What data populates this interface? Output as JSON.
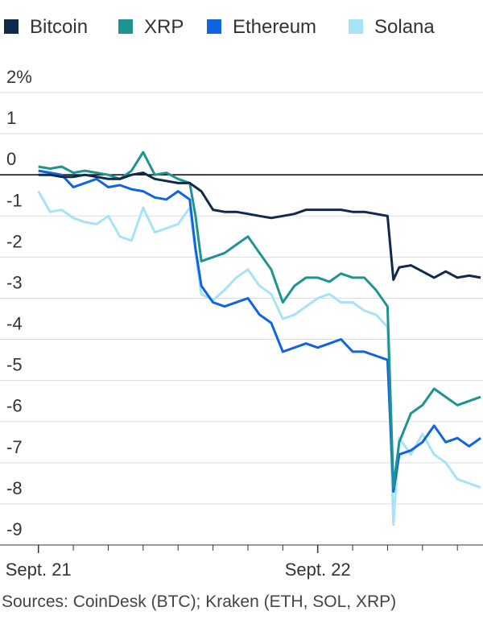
{
  "chart_data": {
    "type": "line",
    "source": "Sources: CoinDesk (BTC); Kraken (ETH, SOL, XRP)",
    "x": [
      0,
      1,
      2,
      3,
      4,
      5,
      6,
      7,
      8,
      9,
      10,
      11,
      12,
      13,
      13.5,
      14,
      15,
      16,
      17,
      18,
      19,
      20,
      21,
      22,
      23,
      24,
      25,
      26,
      27,
      28,
      29,
      30,
      30.5,
      31,
      32,
      33,
      34,
      35,
      36,
      37,
      38
    ],
    "xlim": [
      -3.3,
      38.2
    ],
    "xticks": [
      {
        "value": 0,
        "label": "Sept. 21"
      },
      3,
      6,
      9,
      12,
      15,
      18,
      21,
      {
        "value": 24,
        "label": "Sept. 22"
      },
      27,
      30,
      33,
      36
    ],
    "ylim": [
      -9,
      2
    ],
    "yticks": [
      {
        "value": 2,
        "label": "2%"
      },
      1,
      0,
      -1,
      -2,
      -3,
      -4,
      -5,
      -6,
      -7,
      -8,
      -9
    ],
    "grid": true,
    "series": [
      {
        "name": "Bitcoin",
        "color": "#0f2a4a",
        "values": [
          0,
          0,
          -0.05,
          -0.05,
          0,
          -0.05,
          -0.1,
          -0.1,
          0,
          0.05,
          -0.1,
          -0.15,
          -0.2,
          -0.2,
          -0.3,
          -0.4,
          -0.85,
          -0.9,
          -0.9,
          -0.95,
          -1,
          -1.05,
          -1,
          -0.95,
          -0.85,
          -0.85,
          -0.85,
          -0.85,
          -0.9,
          -0.9,
          -0.95,
          -1,
          -2.55,
          -2.25,
          -2.2,
          -2.35,
          -2.5,
          -2.35,
          -2.5,
          -2.45,
          -2.5
        ]
      },
      {
        "name": "XRP",
        "color": "#1d9490",
        "values": [
          0.2,
          0.15,
          0.2,
          0.05,
          0.1,
          0.05,
          0,
          -0.1,
          0.1,
          0.55,
          0,
          0.05,
          -0.1,
          -0.2,
          -1,
          -2.1,
          -2,
          -1.9,
          -1.7,
          -1.5,
          -1.9,
          -2.3,
          -3.1,
          -2.7,
          -2.5,
          -2.5,
          -2.6,
          -2.4,
          -2.5,
          -2.5,
          -2.8,
          -3.2,
          -7.6,
          -6.5,
          -5.8,
          -5.6,
          -5.2,
          -5.4,
          -5.6,
          -5.5,
          -5.4
        ]
      },
      {
        "name": "Ethereum",
        "color": "#1064e0",
        "values": [
          0.1,
          0.05,
          0,
          -0.3,
          -0.2,
          -0.1,
          -0.3,
          -0.25,
          -0.35,
          -0.4,
          -0.55,
          -0.6,
          -0.4,
          -0.6,
          -1.8,
          -2.7,
          -3.1,
          -3.2,
          -3.1,
          -3,
          -3.4,
          -3.6,
          -4.3,
          -4.2,
          -4.1,
          -4.2,
          -4.1,
          -4,
          -4.3,
          -4.3,
          -4.4,
          -4.5,
          -7.7,
          -6.8,
          -6.7,
          -6.5,
          -6.1,
          -6.5,
          -6.4,
          -6.6,
          -6.4
        ]
      },
      {
        "name": "Solana",
        "color": "#a6e3f7",
        "values": [
          -0.4,
          -0.9,
          -0.85,
          -1.05,
          -1.15,
          -1.2,
          -1,
          -1.5,
          -1.6,
          -0.8,
          -1.4,
          -1.3,
          -1.2,
          -0.8,
          -1.9,
          -2.9,
          -3.05,
          -2.8,
          -2.5,
          -2.3,
          -2.7,
          -2.9,
          -3.5,
          -3.4,
          -3.2,
          -3,
          -2.9,
          -3.1,
          -3.1,
          -3.3,
          -3.4,
          -3.7,
          -8.5,
          -6.4,
          -6.8,
          -6.3,
          -6.8,
          -7,
          -7.4,
          -7.5,
          -7.6
        ]
      }
    ]
  }
}
